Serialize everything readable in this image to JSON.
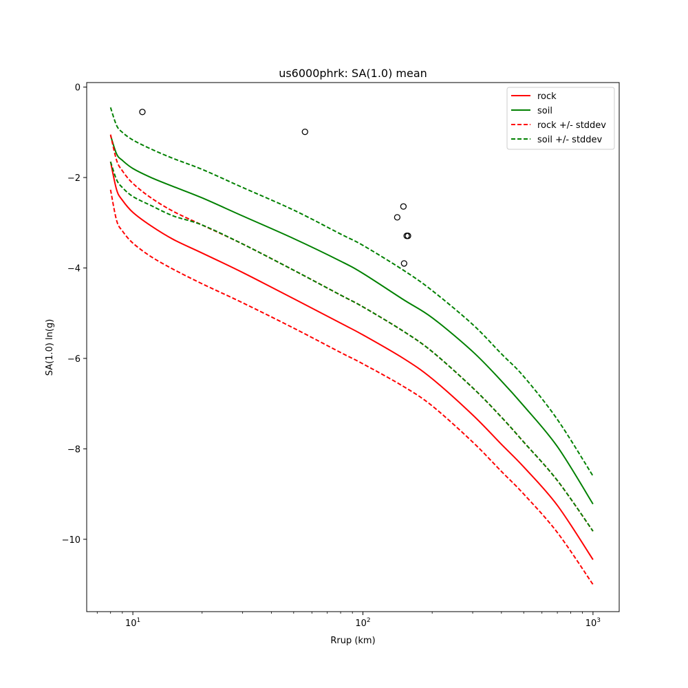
{
  "chart_data": {
    "type": "line",
    "title": "us6000phrk: SA(1.0) mean",
    "xlabel": "Rrup (km)",
    "ylabel": "SA(1.0) ln(g)",
    "x_scale": "log",
    "xlim": [
      6.3,
      1300
    ],
    "ylim": [
      -11.6,
      0.1
    ],
    "grid": false,
    "legend_position": "top-right",
    "x_ticks": [
      {
        "value": 10,
        "base": "10",
        "exp": "1"
      },
      {
        "value": 100,
        "base": "10",
        "exp": "2"
      },
      {
        "value": 1000,
        "base": "10",
        "exp": "3"
      }
    ],
    "y_ticks": [
      {
        "value": 0,
        "label": "0"
      },
      {
        "value": -2,
        "label": "−2"
      },
      {
        "value": -4,
        "label": "−4"
      },
      {
        "value": -6,
        "label": "−6"
      },
      {
        "value": -8,
        "label": "−8"
      },
      {
        "value": -10,
        "label": "−10"
      }
    ],
    "series": [
      {
        "name": "rock",
        "color": "#ff0000",
        "style": "solid",
        "x": [
          8,
          8.5,
          9,
          10,
          12,
          15,
          20,
          30,
          50,
          80,
          100,
          150,
          200,
          300,
          400,
          500,
          700,
          1000
        ],
        "y": [
          -1.65,
          -2.27,
          -2.5,
          -2.77,
          -3.07,
          -3.37,
          -3.67,
          -4.1,
          -4.68,
          -5.22,
          -5.48,
          -6.0,
          -6.45,
          -7.25,
          -7.9,
          -8.4,
          -9.25,
          -10.45
        ]
      },
      {
        "name": "soil",
        "color": "#008000",
        "style": "solid",
        "x": [
          8,
          8.5,
          9,
          10,
          12,
          15,
          20,
          30,
          50,
          80,
          100,
          150,
          200,
          300,
          400,
          500,
          700,
          1000
        ],
        "y": [
          -1.07,
          -1.48,
          -1.62,
          -1.8,
          -2.0,
          -2.2,
          -2.45,
          -2.85,
          -3.35,
          -3.85,
          -4.12,
          -4.7,
          -5.1,
          -5.85,
          -6.5,
          -7.05,
          -7.95,
          -9.22
        ]
      },
      {
        "name": "rock +/- stddev",
        "color": "#ff0000",
        "style": "dashed",
        "x": [
          8,
          8.5,
          9,
          10,
          12,
          15,
          20,
          30,
          50,
          80,
          100,
          150,
          200,
          300,
          400,
          500,
          700,
          1000
        ],
        "y": [
          -1.05,
          -1.62,
          -1.85,
          -2.13,
          -2.45,
          -2.75,
          -3.05,
          -3.47,
          -4.05,
          -4.6,
          -4.86,
          -5.4,
          -5.85,
          -6.65,
          -7.3,
          -7.85,
          -8.7,
          -9.82
        ]
      },
      {
        "name": "",
        "color": "#ff0000",
        "style": "dashed",
        "x": [
          8,
          8.5,
          9,
          10,
          12,
          15,
          20,
          30,
          50,
          80,
          100,
          150,
          200,
          300,
          400,
          500,
          700,
          1000
        ],
        "y": [
          -2.27,
          -2.95,
          -3.18,
          -3.45,
          -3.75,
          -4.03,
          -4.35,
          -4.77,
          -5.33,
          -5.87,
          -6.12,
          -6.62,
          -7.05,
          -7.85,
          -8.5,
          -9.0,
          -9.85,
          -11.0
        ]
      },
      {
        "name": "soil +/- stddev",
        "color": "#008000",
        "style": "dashed",
        "x": [
          8,
          8.5,
          9,
          10,
          12,
          15,
          20,
          30,
          50,
          80,
          100,
          150,
          200,
          300,
          400,
          500,
          700,
          1000
        ],
        "y": [
          -0.45,
          -0.85,
          -1.0,
          -1.17,
          -1.37,
          -1.58,
          -1.82,
          -2.22,
          -2.72,
          -3.25,
          -3.5,
          -4.05,
          -4.5,
          -5.25,
          -5.9,
          -6.4,
          -7.35,
          -8.6
        ]
      },
      {
        "name": "",
        "color": "#008000",
        "style": "dashed",
        "x": [
          8,
          8.5,
          9,
          10,
          12,
          15,
          20,
          30,
          50,
          80,
          100,
          150,
          200,
          300,
          400,
          500,
          700,
          1000
        ],
        "y": [
          -1.65,
          -2.05,
          -2.22,
          -2.42,
          -2.62,
          -2.85,
          -3.05,
          -3.47,
          -4.05,
          -4.6,
          -4.86,
          -5.4,
          -5.85,
          -6.65,
          -7.3,
          -7.85,
          -8.7,
          -9.82
        ]
      }
    ],
    "observations": {
      "color": "#000000",
      "points": [
        {
          "x": 11,
          "y": -0.55
        },
        {
          "x": 56,
          "y": -0.99
        },
        {
          "x": 150,
          "y": -2.64
        },
        {
          "x": 141,
          "y": -2.88
        },
        {
          "x": 155,
          "y": -3.29
        },
        {
          "x": 157,
          "y": -3.29
        },
        {
          "x": 151,
          "y": -3.9
        }
      ]
    },
    "legend": [
      {
        "label": "rock",
        "color": "#ff0000",
        "style": "solid"
      },
      {
        "label": "soil",
        "color": "#008000",
        "style": "solid"
      },
      {
        "label": "rock +/- stddev",
        "color": "#ff0000",
        "style": "dashed"
      },
      {
        "label": "soil +/- stddev",
        "color": "#008000",
        "style": "dashed"
      }
    ]
  }
}
